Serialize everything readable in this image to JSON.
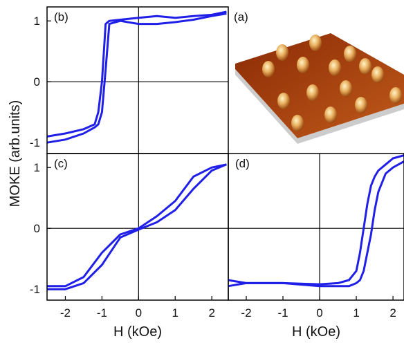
{
  "chart_data": [
    {
      "type": "line",
      "panel_label": "(b)",
      "color": "#1f1fe8",
      "x": [
        -2.5,
        -2,
        -1.5,
        -1.2,
        -1.1,
        -1.0,
        -0.9,
        -0.8,
        -0.5,
        0,
        0.5,
        1,
        1.5,
        2,
        2.4
      ],
      "series": [
        {
          "values": [
            -0.9,
            -0.85,
            -0.78,
            -0.7,
            -0.5,
            0.0,
            0.95,
            1.0,
            1.02,
            1.05,
            1.08,
            1.05,
            1.08,
            1.1,
            1.15
          ]
        },
        {
          "values": [
            -1.0,
            -0.95,
            -0.85,
            -0.75,
            -0.7,
            -0.5,
            0.2,
            0.95,
            1.0,
            0.95,
            0.95,
            0.98,
            1.02,
            1.08,
            1.12
          ]
        }
      ],
      "xlim": [
        -2.5,
        2.45
      ],
      "ylim": [
        -1.18,
        1.23
      ],
      "yticks": [
        -1,
        0,
        1
      ]
    },
    {
      "type": "image",
      "panel_label": "(a)"
    },
    {
      "type": "line",
      "panel_label": "(c)",
      "color": "#1f1fe8",
      "x": [
        -2.5,
        -2,
        -1.5,
        -1,
        -0.5,
        0,
        0.5,
        1,
        1.5,
        2,
        2.4
      ],
      "series": [
        {
          "values": [
            -0.95,
            -0.95,
            -0.8,
            -0.4,
            -0.1,
            0.0,
            0.2,
            0.45,
            0.85,
            1.0,
            1.05
          ]
        },
        {
          "values": [
            -1.0,
            -1.0,
            -0.9,
            -0.6,
            -0.15,
            -0.02,
            0.1,
            0.3,
            0.65,
            0.95,
            1.05
          ]
        }
      ],
      "xlim": [
        -2.5,
        2.45
      ],
      "ylim": [
        -1.18,
        1.23
      ],
      "yticks": [
        -1,
        0,
        1
      ],
      "xticks": [
        -2,
        -1,
        0,
        1,
        2
      ],
      "xlabel": "H (kOe)",
      "ylabel": "MOKE (arb.units)"
    },
    {
      "type": "line",
      "panel_label": "(d)",
      "color": "#1f1fe8",
      "x": [
        -2.5,
        -2,
        -1,
        0,
        0.5,
        0.8,
        1.0,
        1.1,
        1.2,
        1.3,
        1.4,
        1.5,
        1.6,
        1.8,
        2,
        2.3
      ],
      "series": [
        {
          "values": [
            -0.85,
            -0.9,
            -0.9,
            -0.92,
            -0.9,
            -0.85,
            -0.7,
            -0.4,
            0.0,
            0.4,
            0.7,
            0.85,
            0.95,
            1.05,
            1.15,
            1.2
          ]
        },
        {
          "values": [
            -0.95,
            -0.9,
            -0.9,
            -0.95,
            -0.95,
            -0.95,
            -0.9,
            -0.85,
            -0.7,
            -0.4,
            -0.1,
            0.3,
            0.6,
            0.9,
            1.0,
            1.1
          ]
        }
      ],
      "xlim": [
        -2.49,
        2.3
      ],
      "ylim": [
        -1.18,
        1.23
      ],
      "xticks": [
        -2,
        -1,
        0,
        1,
        2
      ],
      "xlabel": "H (kOe)"
    }
  ]
}
